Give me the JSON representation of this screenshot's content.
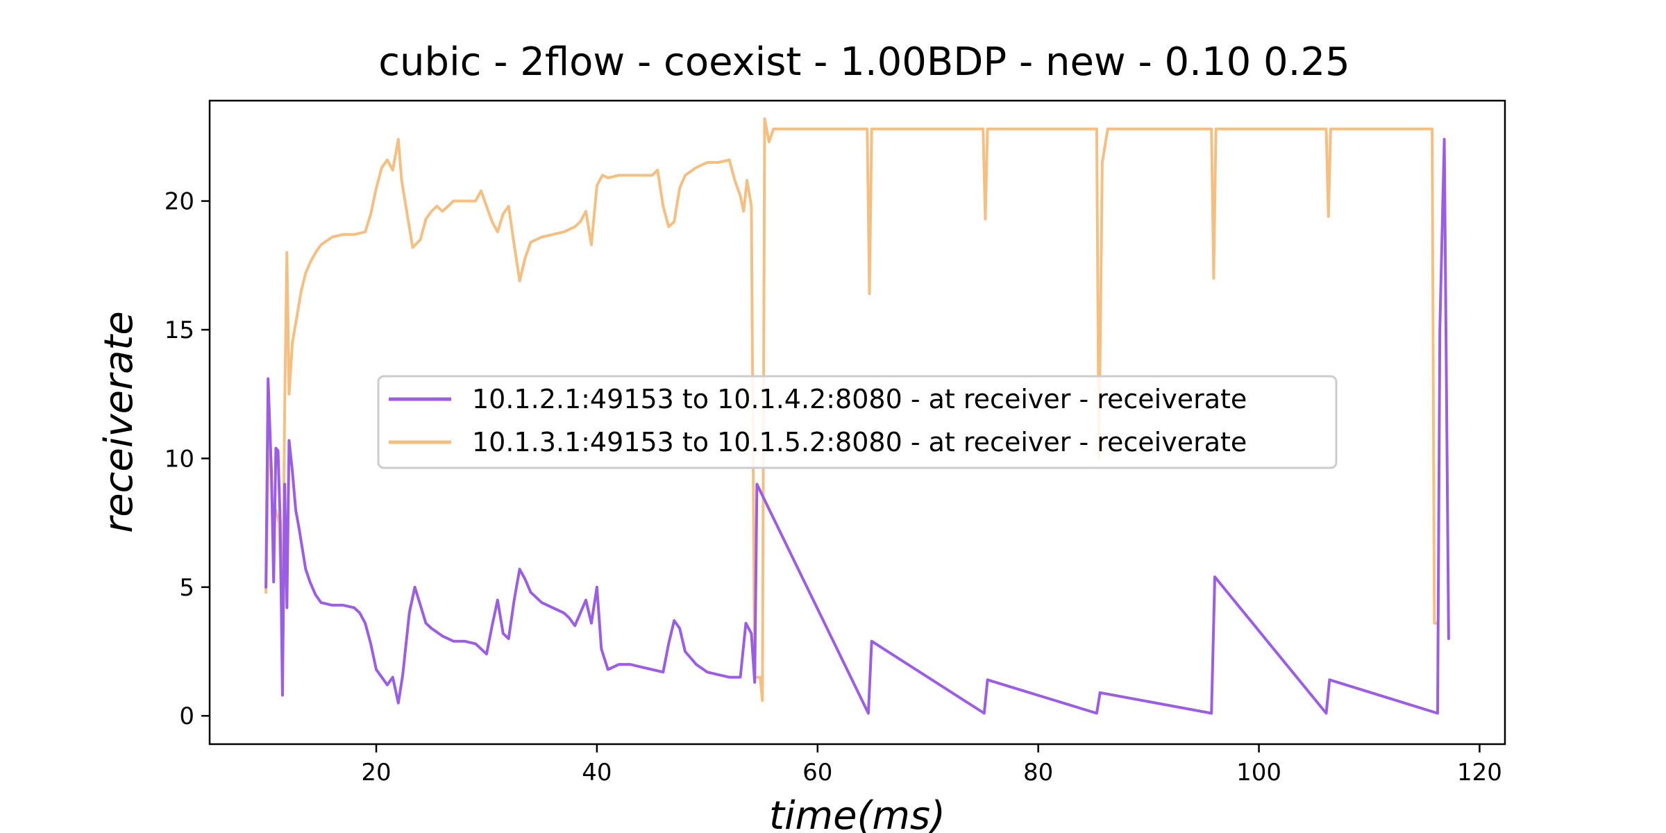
{
  "chart_data": {
    "type": "line",
    "title": "cubic - 2flow - coexist - 1.00BDP - new - 0.10 0.25",
    "xlabel": "time(ms)",
    "ylabel": "receiverate",
    "xlim": [
      4.9,
      122.3
    ],
    "ylim": [
      -1.1,
      23.9
    ],
    "xticks": [
      20,
      40,
      60,
      80,
      100,
      120
    ],
    "yticks": [
      0,
      5,
      10,
      15,
      20
    ],
    "xtick_labels": [
      "20",
      "40",
      "60",
      "80",
      "100",
      "120"
    ],
    "ytick_labels": [
      "0",
      "5",
      "10",
      "15",
      "20"
    ],
    "grid": false,
    "legend_position": "center",
    "series": [
      {
        "name": "10.1.2.1:49153 to 10.1.4.2:8080 - at receiver - receiverate",
        "color": "#9b5de5",
        "points": [
          [
            10.0,
            5.0
          ],
          [
            10.2,
            13.1
          ],
          [
            10.5,
            9.5
          ],
          [
            10.7,
            5.2
          ],
          [
            10.9,
            10.4
          ],
          [
            11.1,
            10.3
          ],
          [
            11.3,
            7.5
          ],
          [
            11.5,
            0.8
          ],
          [
            11.7,
            9.0
          ],
          [
            11.9,
            4.2
          ],
          [
            12.1,
            10.7
          ],
          [
            12.4,
            9.5
          ],
          [
            12.7,
            8.0
          ],
          [
            13.0,
            7.3
          ],
          [
            13.3,
            6.5
          ],
          [
            13.6,
            5.7
          ],
          [
            14.0,
            5.2
          ],
          [
            14.5,
            4.7
          ],
          [
            15.0,
            4.4
          ],
          [
            16.0,
            4.3
          ],
          [
            17.0,
            4.3
          ],
          [
            18.0,
            4.2
          ],
          [
            18.5,
            4.0
          ],
          [
            19.0,
            3.6
          ],
          [
            19.5,
            2.8
          ],
          [
            20.0,
            1.8
          ],
          [
            20.5,
            1.5
          ],
          [
            21.0,
            1.2
          ],
          [
            21.5,
            1.5
          ],
          [
            22.0,
            0.5
          ],
          [
            22.4,
            1.6
          ],
          [
            23.0,
            4.0
          ],
          [
            23.5,
            5.0
          ],
          [
            24.0,
            4.3
          ],
          [
            24.5,
            3.6
          ],
          [
            25.0,
            3.4
          ],
          [
            26.0,
            3.1
          ],
          [
            27.0,
            2.9
          ],
          [
            28.0,
            2.9
          ],
          [
            29.0,
            2.8
          ],
          [
            30.0,
            2.4
          ],
          [
            30.5,
            3.5
          ],
          [
            31.0,
            4.5
          ],
          [
            31.5,
            3.2
          ],
          [
            32.0,
            3.0
          ],
          [
            32.5,
            4.5
          ],
          [
            33.0,
            5.7
          ],
          [
            33.5,
            5.3
          ],
          [
            34.0,
            4.8
          ],
          [
            35.0,
            4.4
          ],
          [
            36.0,
            4.2
          ],
          [
            37.0,
            4.0
          ],
          [
            37.5,
            3.8
          ],
          [
            38.0,
            3.5
          ],
          [
            38.5,
            4.0
          ],
          [
            39.0,
            4.5
          ],
          [
            39.5,
            3.6
          ],
          [
            40.0,
            5.0
          ],
          [
            40.4,
            2.6
          ],
          [
            41.0,
            1.8
          ],
          [
            42.0,
            2.0
          ],
          [
            43.0,
            2.0
          ],
          [
            44.0,
            1.9
          ],
          [
            45.0,
            1.8
          ],
          [
            46.0,
            1.7
          ],
          [
            46.5,
            2.8
          ],
          [
            47.0,
            3.7
          ],
          [
            47.5,
            3.4
          ],
          [
            48.0,
            2.5
          ],
          [
            49.0,
            2.0
          ],
          [
            50.0,
            1.7
          ],
          [
            51.0,
            1.6
          ],
          [
            52.0,
            1.5
          ],
          [
            53.0,
            1.5
          ],
          [
            53.5,
            3.6
          ],
          [
            54.0,
            3.2
          ],
          [
            54.3,
            1.3
          ],
          [
            54.5,
            9.0
          ],
          [
            64.6,
            0.1
          ],
          [
            64.9,
            2.9
          ],
          [
            75.1,
            0.1
          ],
          [
            75.4,
            1.4
          ],
          [
            85.3,
            0.1
          ],
          [
            85.6,
            0.9
          ],
          [
            95.7,
            0.1
          ],
          [
            96.0,
            5.4
          ],
          [
            106.1,
            0.1
          ],
          [
            106.4,
            1.4
          ],
          [
            116.2,
            0.1
          ],
          [
            116.4,
            15.0
          ],
          [
            116.8,
            22.4
          ],
          [
            117.2,
            3.0
          ]
        ]
      },
      {
        "name": "10.1.3.1:49153 to 10.1.5.2:8080 - at receiver - receiverate",
        "color": "#f5bf82",
        "points": [
          [
            10.0,
            4.8
          ],
          [
            10.3,
            11.8
          ],
          [
            10.6,
            7.6
          ],
          [
            10.9,
            8.0
          ],
          [
            11.2,
            7.5
          ],
          [
            11.5,
            3.2
          ],
          [
            11.7,
            12.0
          ],
          [
            11.9,
            18.0
          ],
          [
            12.1,
            12.5
          ],
          [
            12.4,
            14.5
          ],
          [
            12.8,
            15.5
          ],
          [
            13.2,
            16.5
          ],
          [
            13.6,
            17.2
          ],
          [
            14.0,
            17.6
          ],
          [
            14.5,
            18.0
          ],
          [
            15.0,
            18.3
          ],
          [
            16.0,
            18.6
          ],
          [
            17.0,
            18.7
          ],
          [
            18.0,
            18.7
          ],
          [
            19.0,
            18.8
          ],
          [
            19.5,
            19.5
          ],
          [
            20.0,
            20.5
          ],
          [
            20.5,
            21.3
          ],
          [
            21.0,
            21.6
          ],
          [
            21.5,
            21.2
          ],
          [
            22.0,
            22.4
          ],
          [
            22.3,
            20.8
          ],
          [
            22.8,
            19.5
          ],
          [
            23.3,
            18.2
          ],
          [
            24.0,
            18.5
          ],
          [
            24.5,
            19.3
          ],
          [
            25.0,
            19.6
          ],
          [
            25.5,
            19.8
          ],
          [
            26.0,
            19.6
          ],
          [
            27.0,
            20.0
          ],
          [
            28.0,
            20.0
          ],
          [
            29.0,
            20.0
          ],
          [
            29.5,
            20.4
          ],
          [
            30.0,
            19.8
          ],
          [
            30.5,
            19.2
          ],
          [
            31.0,
            18.8
          ],
          [
            31.5,
            19.5
          ],
          [
            32.0,
            19.8
          ],
          [
            32.5,
            18.3
          ],
          [
            33.0,
            16.9
          ],
          [
            33.5,
            17.8
          ],
          [
            34.0,
            18.4
          ],
          [
            35.0,
            18.6
          ],
          [
            36.0,
            18.7
          ],
          [
            37.0,
            18.8
          ],
          [
            38.0,
            19.0
          ],
          [
            38.5,
            19.2
          ],
          [
            39.0,
            19.6
          ],
          [
            39.5,
            18.3
          ],
          [
            40.0,
            20.6
          ],
          [
            40.5,
            21.0
          ],
          [
            41.0,
            20.9
          ],
          [
            42.0,
            21.0
          ],
          [
            43.0,
            21.0
          ],
          [
            44.0,
            21.0
          ],
          [
            45.0,
            21.0
          ],
          [
            45.5,
            21.2
          ],
          [
            46.0,
            19.8
          ],
          [
            46.5,
            19.0
          ],
          [
            47.0,
            19.2
          ],
          [
            47.5,
            20.5
          ],
          [
            48.0,
            21.0
          ],
          [
            49.0,
            21.3
          ],
          [
            50.0,
            21.5
          ],
          [
            51.0,
            21.5
          ],
          [
            52.0,
            21.6
          ],
          [
            52.5,
            20.8
          ],
          [
            53.0,
            20.2
          ],
          [
            53.3,
            19.6
          ],
          [
            53.6,
            20.8
          ],
          [
            54.0,
            19.8
          ],
          [
            54.3,
            1.5
          ],
          [
            54.8,
            1.5
          ],
          [
            55.0,
            0.6
          ],
          [
            55.2,
            23.2
          ],
          [
            55.6,
            22.3
          ],
          [
            56.0,
            22.8
          ],
          [
            60.0,
            22.8
          ],
          [
            64.5,
            22.8
          ],
          [
            64.7,
            16.4
          ],
          [
            64.9,
            22.8
          ],
          [
            75.0,
            22.8
          ],
          [
            75.2,
            19.3
          ],
          [
            75.4,
            22.8
          ],
          [
            85.3,
            22.8
          ],
          [
            85.5,
            10.0
          ],
          [
            85.8,
            21.5
          ],
          [
            86.3,
            22.8
          ],
          [
            95.7,
            22.8
          ],
          [
            95.9,
            17.0
          ],
          [
            96.1,
            22.8
          ],
          [
            106.1,
            22.8
          ],
          [
            106.3,
            19.4
          ],
          [
            106.5,
            22.8
          ],
          [
            115.7,
            22.8
          ],
          [
            115.9,
            3.6
          ],
          [
            116.1,
            3.6
          ]
        ]
      }
    ]
  }
}
